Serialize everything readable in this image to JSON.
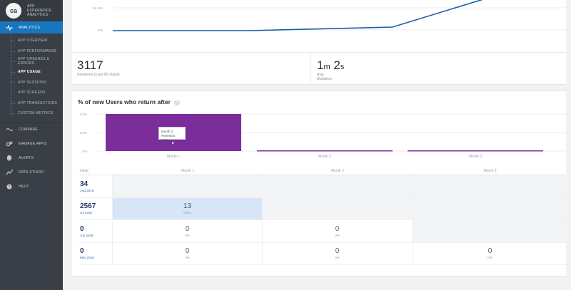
{
  "brand": {
    "logo": "ca",
    "logo_sub": "technologies",
    "title_lines": [
      "APP",
      "EXPERIENCE",
      "ANALYTICS"
    ]
  },
  "sidebar": {
    "analytics_label": "ANALYTICS",
    "sub_items": [
      "APP OVERVIEW",
      "APP PERFORMANCE",
      "APP CRASHES & ERRORS",
      "APP USAGE",
      "APP SESSIONS",
      "APP SCREENS",
      "APP TRANSACTIONS",
      "CUSTOM METRICS"
    ],
    "current_sub_index": 3,
    "items": [
      {
        "label": "COMPARE",
        "icon": "compare-icon"
      },
      {
        "label": "MANAGE APPS",
        "icon": "gears-icon"
      },
      {
        "label": "ALERTS",
        "icon": "bell-icon"
      },
      {
        "label": "DATA STUDIO",
        "icon": "data-studio-icon"
      },
      {
        "label": "HELP",
        "icon": "help-icon"
      }
    ]
  },
  "sessions_chart": {
    "y_ticks": [
      "1m 40s",
      "40s"
    ]
  },
  "stats": {
    "sessions_value": "3117",
    "sessions_label": "Sessions (Last 90 Days)",
    "duration_value_major": "1",
    "duration_unit_major": "m",
    "duration_value_minor": "2",
    "duration_unit_minor": "s",
    "duration_label": "Avg Duration"
  },
  "retention": {
    "title": "% of new Users who return after",
    "chart_y_ticks": [
      "0.5%",
      "0.0%",
      "0%"
    ],
    "chart_x_labels": [
      "Month 1",
      "Month 2",
      "Month 3"
    ],
    "tooltip_title": "Month 1",
    "tooltip_value": "Retention: 0.5%",
    "colors": {
      "bar": "#7b2d9b",
      "line": "#1a5ea8"
    },
    "table": {
      "headers": [
        "Initial",
        "Month 1",
        "Month 2",
        "Month 3"
      ],
      "rows": [
        {
          "initial": "34",
          "date": "Aug 2016",
          "cells": [
            {
              "type": "dash",
              "v": "-"
            },
            {
              "type": "dash",
              "v": "-"
            },
            {
              "type": "dash",
              "v": "-"
            }
          ]
        },
        {
          "initial": "2567",
          "date": "Jul 2016",
          "cells": [
            {
              "type": "val",
              "v": "13",
              "p": "0.5%",
              "hl": true
            },
            {
              "type": "dash",
              "v": "-"
            },
            {
              "type": "dash",
              "v": "-"
            }
          ]
        },
        {
          "initial": "0",
          "date": "Jun 2016",
          "cells": [
            {
              "type": "val",
              "v": "0",
              "p": "0%"
            },
            {
              "type": "val",
              "v": "0",
              "p": "0%"
            },
            {
              "type": "dash",
              "v": "-"
            }
          ]
        },
        {
          "initial": "0",
          "date": "May 2016",
          "cells": [
            {
              "type": "val",
              "v": "0",
              "p": "0%"
            },
            {
              "type": "val",
              "v": "0",
              "p": "0%"
            },
            {
              "type": "val",
              "v": "0",
              "p": "0%"
            }
          ]
        }
      ]
    }
  }
}
